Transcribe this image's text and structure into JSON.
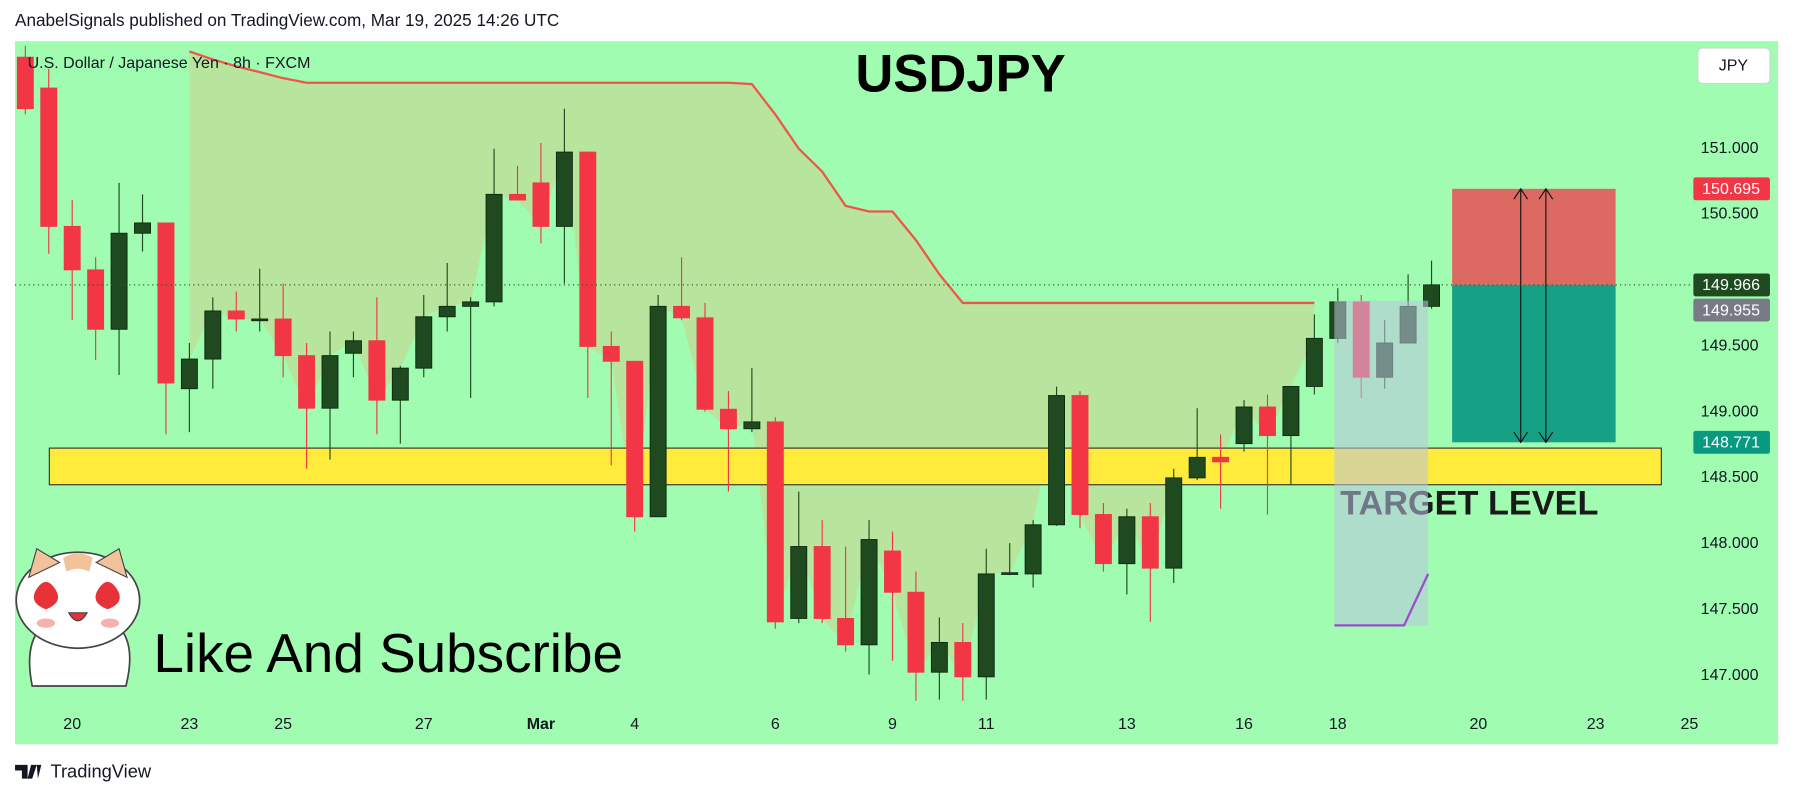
{
  "header": "AnabelSignals published on TradingView.com, Mar 19, 2025 14:26 UTC",
  "footer": "TradingView",
  "chart_data": {
    "type": "candlestick",
    "title": "USDJPY",
    "subtitle": "U.S. Dollar / Japanese Yen · 8h · FXCM",
    "currency": "JPY",
    "annotation": "Like And Subscribe",
    "categories": [
      null,
      null,
      "20",
      null,
      null,
      null,
      null,
      "23",
      null,
      null,
      null,
      "25",
      null,
      null,
      null,
      null,
      null,
      "27",
      null,
      null,
      null,
      null,
      "Mar",
      null,
      null,
      null,
      "4",
      null,
      null,
      null,
      null,
      null,
      "6",
      null,
      null,
      null,
      null,
      "9",
      null,
      null,
      null,
      "11",
      null,
      null,
      null,
      null,
      null,
      "13",
      null,
      null,
      null,
      null,
      "16",
      null,
      null,
      null,
      "18",
      null,
      null,
      null,
      null,
      null,
      "20",
      null,
      null,
      null,
      null,
      "23",
      null,
      null,
      null,
      "25"
    ],
    "open": [
      151.694,
      151.46,
      150.41,
      150.08,
      149.629,
      150.358,
      150.436,
      149.178,
      149.403,
      149.768,
      149.698,
      149.707,
      149.429,
      149.03,
      149.447,
      149.542,
      149.091,
      149.334,
      149.724,
      149.803,
      149.837,
      150.653,
      150.74,
      150.41,
      150.974,
      149.499,
      149.386,
      148.206,
      149.803,
      149.716,
      149.022,
      148.874,
      148.926,
      147.434,
      147.98,
      147.434,
      147.234,
      147.946,
      147.633,
      147.026,
      147.252,
      146.991,
      147.772,
      147.772,
      148.145,
      149.126,
      148.223,
      147.85,
      148.206,
      147.816,
      148.501,
      148.657,
      148.761,
      149.039,
      148.822,
      149.195,
      149.56,
      149.837,
      149.265,
      149.525,
      149.803,
      null,
      null,
      null,
      null,
      null,
      null,
      null,
      null,
      null,
      null,
      null
    ],
    "high": [
      151.781,
      151.607,
      150.61,
      150.176,
      150.74,
      150.653,
      150.436,
      149.525,
      149.872,
      149.915,
      150.089,
      149.976,
      149.525,
      149.612,
      149.612,
      149.872,
      149.351,
      149.889,
      150.132,
      149.872,
      151.0,
      150.87,
      151.043,
      151.304,
      150.974,
      149.612,
      149.386,
      149.889,
      150.176,
      149.829,
      149.16,
      149.334,
      148.961,
      148.397,
      148.18,
      147.98,
      148.18,
      148.093,
      147.789,
      147.442,
      147.399,
      147.963,
      148.006,
      148.18,
      149.195,
      149.16,
      148.31,
      148.267,
      148.31,
      148.57,
      149.03,
      148.831,
      149.091,
      149.134,
      149.195,
      149.742,
      149.941,
      149.889,
      149.698,
      150.046,
      150.15,
      null,
      null,
      null,
      null,
      null,
      null,
      null,
      null,
      null,
      null,
      null
    ],
    "low": [
      151.26,
      150.202,
      149.698,
      149.395,
      149.282,
      150.219,
      148.831,
      148.848,
      149.178,
      149.612,
      149.612,
      149.265,
      148.57,
      148.64,
      149.265,
      148.831,
      148.761,
      149.265,
      149.612,
      149.108,
      149.803,
      150.61,
      150.28,
      149.976,
      149.108,
      148.596,
      148.093,
      148.206,
      149.698,
      149.004,
      148.397,
      148.848,
      147.356,
      147.399,
      147.399,
      147.182,
      147.009,
      147.113,
      146.809,
      146.818,
      146.809,
      146.818,
      147.763,
      147.668,
      148.137,
      148.119,
      147.789,
      147.616,
      147.408,
      147.703,
      148.484,
      148.267,
      148.701,
      148.223,
      148.449,
      149.134,
      149.525,
      149.108,
      149.178,
      149.525,
      149.785,
      null,
      null,
      null,
      null,
      null,
      null,
      null,
      null,
      null,
      null,
      null
    ],
    "close": [
      151.304,
      150.41,
      150.08,
      149.629,
      150.358,
      150.436,
      149.221,
      149.403,
      149.768,
      149.707,
      149.707,
      149.429,
      149.03,
      149.429,
      149.542,
      149.091,
      149.334,
      149.724,
      149.803,
      149.837,
      150.653,
      150.61,
      150.41,
      150.974,
      149.499,
      149.386,
      148.206,
      149.803,
      149.716,
      149.022,
      148.874,
      148.926,
      147.408,
      147.98,
      147.434,
      147.234,
      148.033,
      147.633,
      147.026,
      147.252,
      146.991,
      147.772,
      147.781,
      148.145,
      149.126,
      148.223,
      147.85,
      148.206,
      147.816,
      148.501,
      148.657,
      148.623,
      149.039,
      148.822,
      149.195,
      149.56,
      149.837,
      149.265,
      149.525,
      149.803,
      149.966,
      null,
      null,
      null,
      null,
      null,
      null,
      null,
      null,
      null,
      null,
      null
    ],
    "up_color": "#1f4a1f",
    "down_color": "#f23645",
    "series": [
      {
        "type": "line",
        "color": "#f0554a",
        "values": [
          null,
          null,
          null,
          null,
          null,
          null,
          null,
          151.738,
          151.677,
          151.625,
          151.581,
          151.535,
          151.5,
          151.5,
          151.5,
          151.5,
          151.5,
          151.5,
          151.5,
          151.5,
          151.5,
          151.5,
          151.5,
          151.5,
          151.5,
          151.5,
          151.5,
          151.5,
          151.5,
          151.5,
          151.5,
          151.49,
          151.26,
          151.0,
          150.826,
          150.566,
          150.523,
          150.523,
          150.306,
          150.046,
          149.829,
          149.829,
          149.829,
          149.829,
          149.829,
          149.829,
          149.829,
          149.829,
          149.829,
          149.829,
          149.829,
          149.829,
          149.829,
          149.829,
          149.829,
          149.829,
          null,
          null,
          null,
          null,
          null,
          null,
          null,
          null,
          null,
          null,
          null,
          null,
          null,
          null,
          null,
          null
        ]
      }
    ],
    "ylim": [
      146.479,
      151.816
    ],
    "yticks": [
      {
        "value": 151,
        "label": "151.000"
      },
      {
        "value": 150.5,
        "label": "150.500"
      },
      {
        "value": 149.5,
        "label": "149.500"
      },
      {
        "value": 149,
        "label": "149.000"
      },
      {
        "value": 148.5,
        "label": "148.500"
      },
      {
        "value": 148,
        "label": "148.000"
      },
      {
        "value": 147.5,
        "label": "147.500"
      },
      {
        "value": 147,
        "label": "147.000"
      }
    ],
    "grid": false,
    "zone": {
      "top": 148.727,
      "bottom": 148.449,
      "color": "#ffeb3b",
      "label": "TARGET LEVEL"
    },
    "position": {
      "stop": 150.695,
      "entry": 149.966,
      "target": 148.771,
      "stop_color": "#e35a5a",
      "target_color": "#16a085"
    },
    "price_labels": [
      {
        "value": 150.695,
        "color": "#f23645"
      },
      {
        "value": 149.966,
        "color": "#1f4a1f"
      },
      {
        "value": 149.955,
        "color": "#787b86"
      },
      {
        "value": 148.771,
        "color": "#089981"
      }
    ]
  }
}
